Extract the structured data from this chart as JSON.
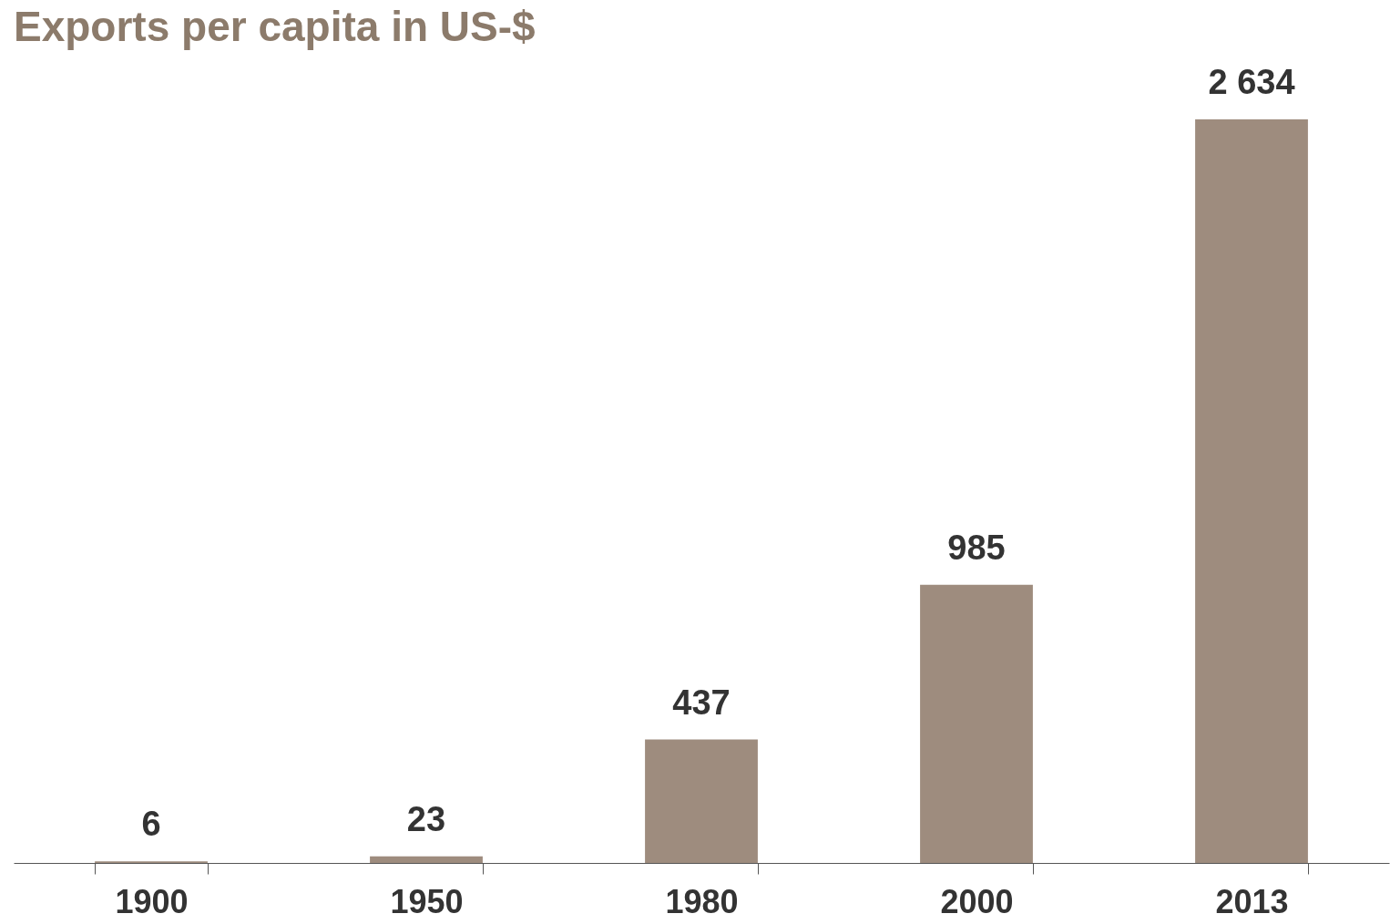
{
  "chart_data": {
    "type": "bar",
    "title": "Exports per capita in US-$",
    "categories": [
      "1900",
      "1950",
      "1980",
      "2000",
      "2013"
    ],
    "values": [
      6,
      23,
      437,
      985,
      2634
    ],
    "value_labels": [
      "6",
      "23",
      "437",
      "985",
      "2 634"
    ],
    "color": "#9e8c7e",
    "grid": false
  }
}
